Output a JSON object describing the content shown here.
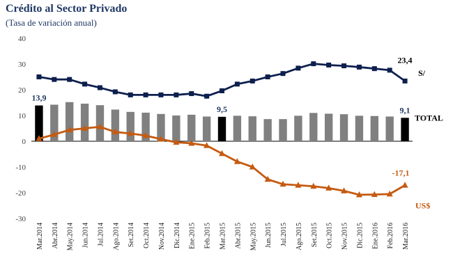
{
  "title": "Crédito al Sector Privado",
  "subtitle": "(Tasa de variación anual)",
  "chart_data": {
    "type": "bar+line",
    "categories": [
      "Mar.2014",
      "Abr.2014",
      "May.2014",
      "Jun.2014",
      "Jul.2014",
      "Ago.2014",
      "Set.2014",
      "Oct.2014",
      "Nov.2014",
      "Dic.2014",
      "Ene.2015",
      "Feb.2015",
      "Mar.2015",
      "Abr.2015",
      "May.2015",
      "Jun.2015",
      "Jul.2015",
      "Ago.2015",
      "Set.2015",
      "Oct.2015",
      "Nov.2015",
      "Dic.2015",
      "Ene.2016",
      "Feb.2016",
      "Mar.2016"
    ],
    "ylim": [
      -30,
      40
    ],
    "yticks": [
      -30,
      -20,
      -10,
      0,
      10,
      20,
      30,
      40
    ],
    "grid": false,
    "series": [
      {
        "name": "TOTAL",
        "kind": "bar",
        "color": "#808080",
        "highlight_color": "#000000",
        "highlight_indices": [
          0,
          12,
          24
        ],
        "values": [
          13.9,
          14.2,
          15.2,
          14.6,
          14.0,
          12.3,
          11.4,
          11.1,
          10.6,
          10.0,
          10.3,
          9.6,
          9.5,
          9.9,
          9.7,
          8.6,
          8.6,
          9.9,
          11.0,
          10.7,
          10.5,
          9.9,
          9.8,
          9.6,
          9.1
        ]
      },
      {
        "name": "S/",
        "kind": "line",
        "color": "#0d1f4d",
        "marker": "square",
        "values": [
          25.0,
          24.0,
          24.0,
          22.2,
          20.8,
          19.2,
          18.0,
          18.0,
          18.0,
          18.0,
          18.5,
          17.5,
          19.6,
          22.2,
          23.4,
          25.0,
          26.3,
          28.4,
          30.1,
          29.6,
          29.3,
          28.8,
          28.2,
          27.6,
          23.4
        ]
      },
      {
        "name": "US$",
        "kind": "line",
        "color": "#c55a11",
        "marker": "triangle",
        "values": [
          1.0,
          2.6,
          4.4,
          5.0,
          5.6,
          3.6,
          3.0,
          2.2,
          0.8,
          -0.4,
          -0.8,
          -1.7,
          -4.8,
          -7.9,
          -10.0,
          -14.8,
          -16.7,
          -17.1,
          -17.5,
          -18.2,
          -19.3,
          -20.8,
          -20.7,
          -20.5,
          -17.1
        ]
      }
    ],
    "annotations": [
      {
        "text": "13,9",
        "color": "#1f3864"
      },
      {
        "text": "9,5",
        "color": "#1f3864"
      },
      {
        "text": "9,1",
        "color": "#1f3864"
      },
      {
        "text": "23,4",
        "color": "#000000"
      },
      {
        "text": "-17,1",
        "color": "#c55a11"
      }
    ],
    "series_labels": [
      {
        "text": "S/",
        "color": "#000000"
      },
      {
        "text": "TOTAL",
        "color": "#000000"
      },
      {
        "text": "US$",
        "color": "#c55a11"
      }
    ]
  }
}
